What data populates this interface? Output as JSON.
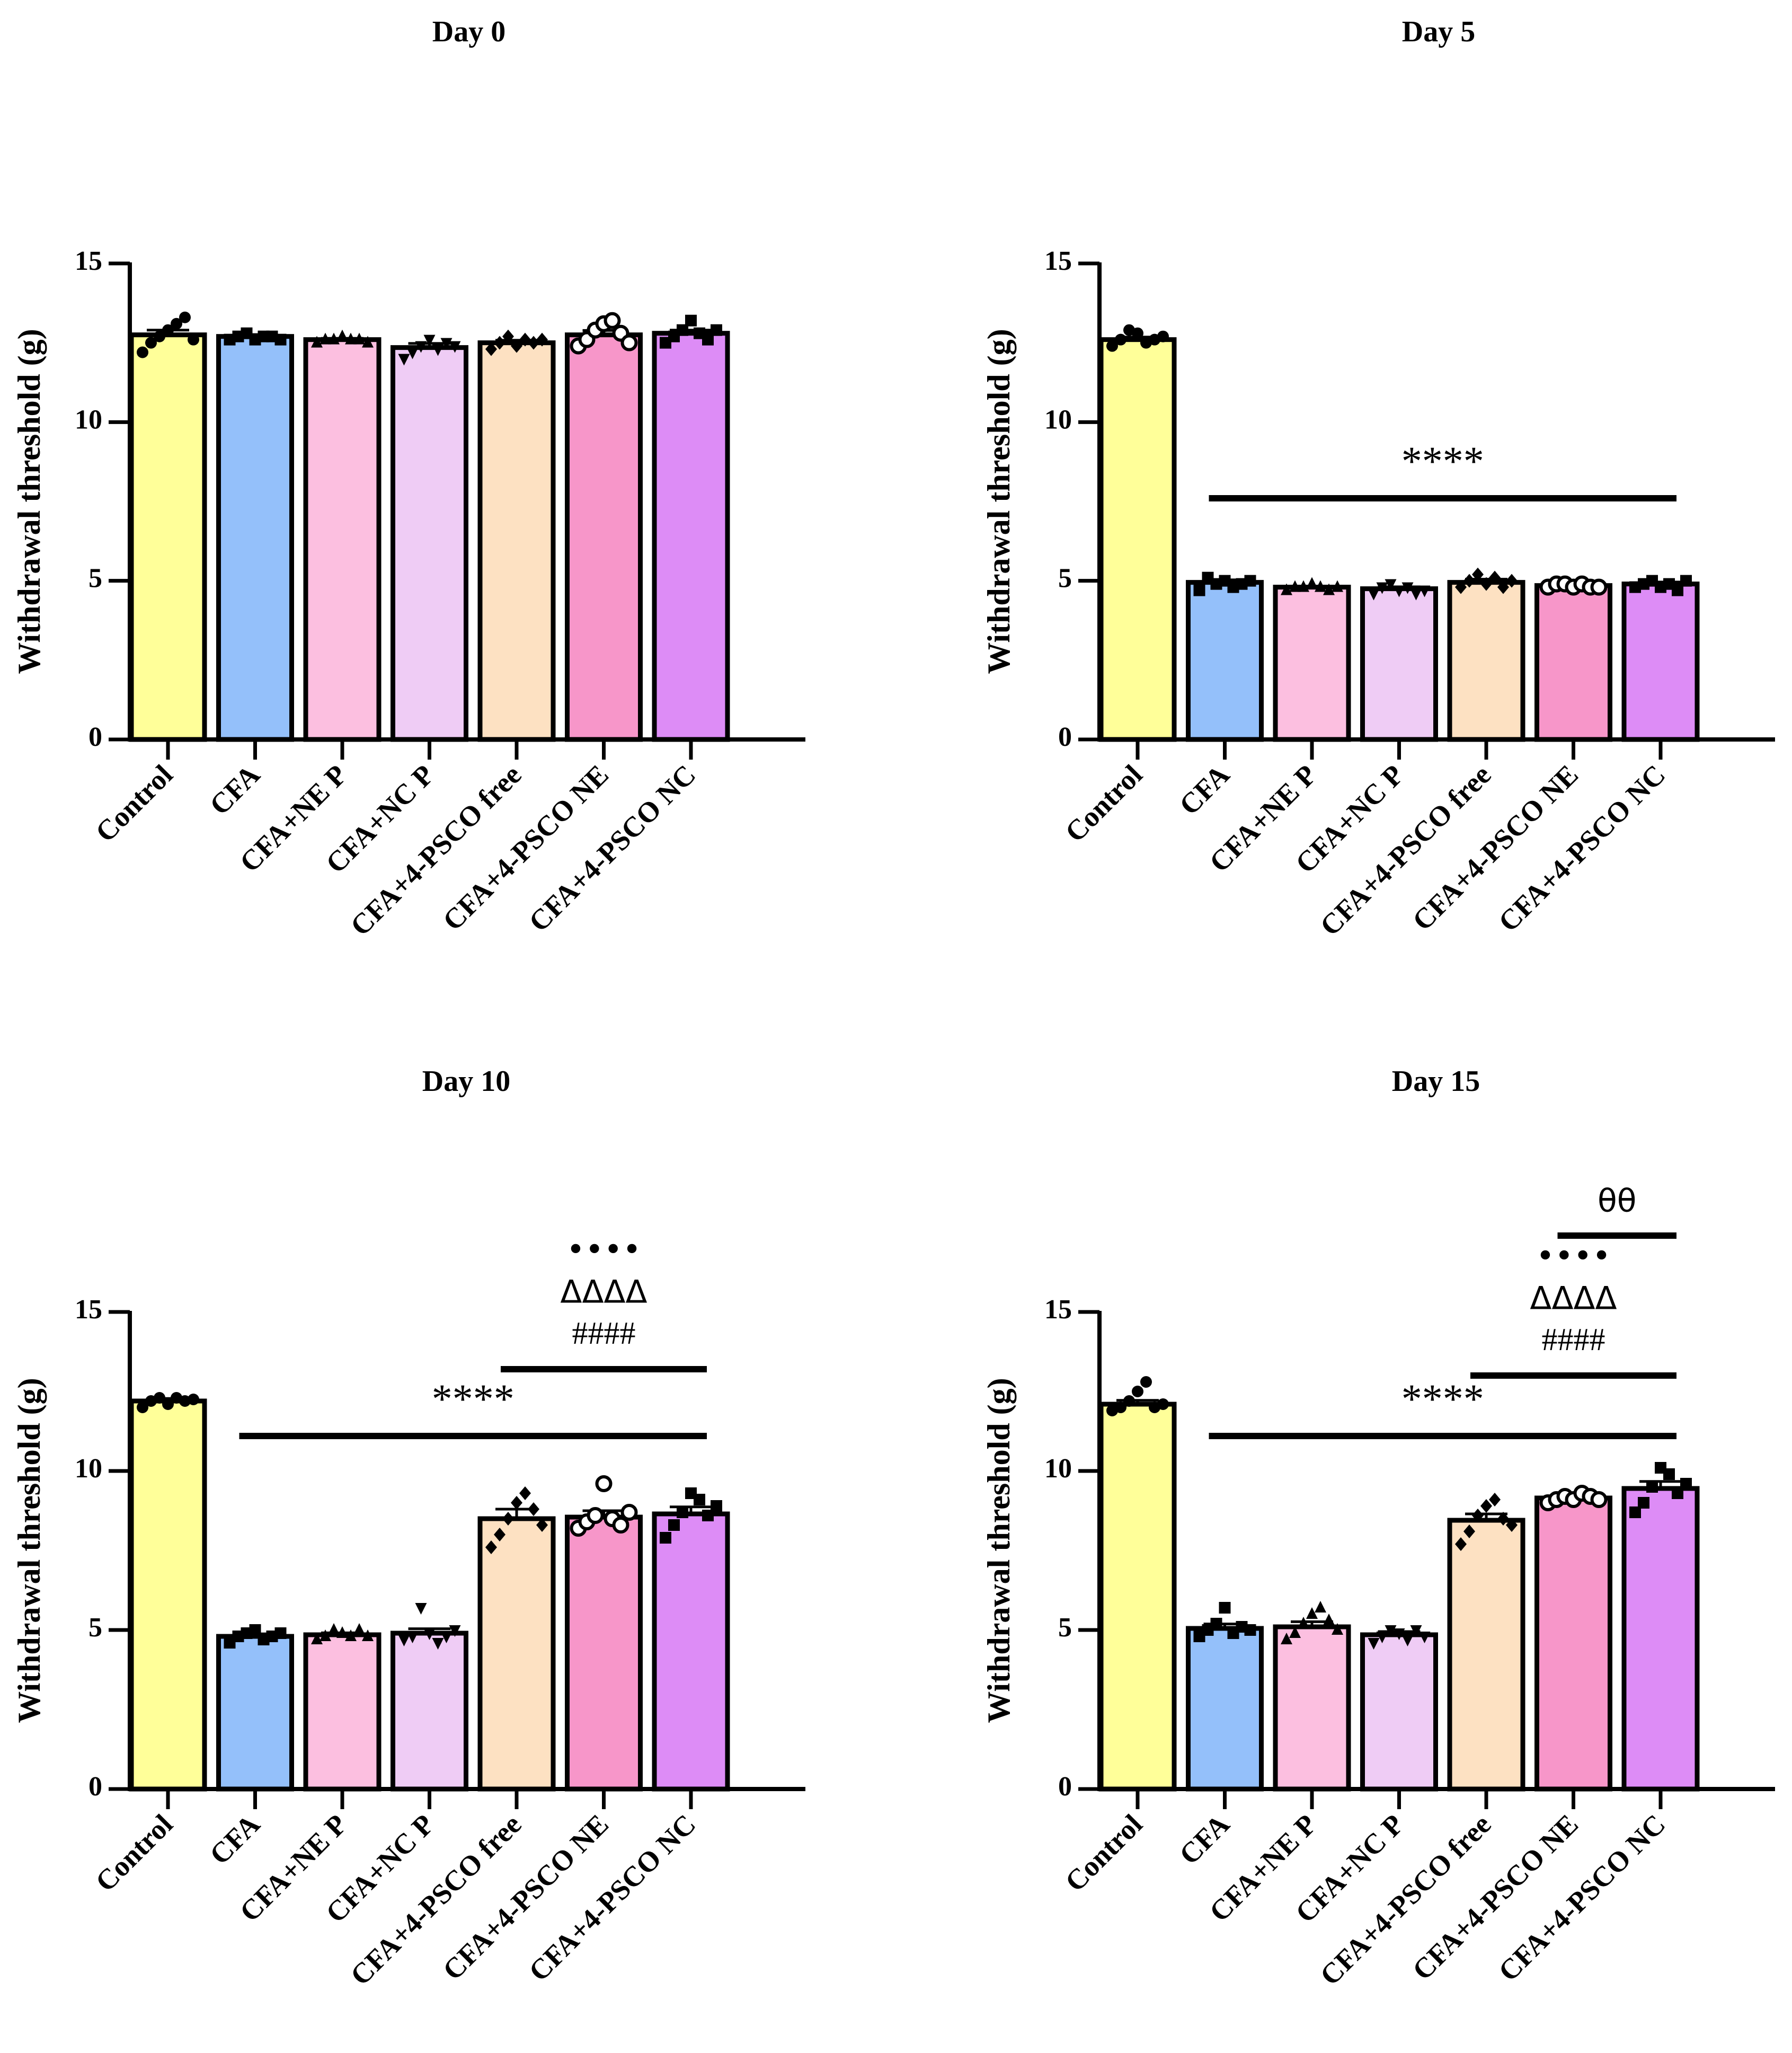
{
  "chart_data": [
    {
      "type": "bar",
      "title": "Day 0",
      "ylabel": "Withdrawal threshold (g)",
      "ylim": [
        0,
        15
      ],
      "yticks": [
        "0",
        "5",
        "10",
        "15"
      ],
      "categories": [
        "Control",
        "CFA",
        "CFA+NE P",
        "CFA+NC P",
        "CFA+4-PSCO free",
        "CFA+4-PSCO NE",
        "CFA+4-PSCO NC"
      ],
      "values": [
        12.75,
        12.7,
        12.6,
        12.35,
        12.5,
        12.75,
        12.8
      ],
      "errors": [
        0.15,
        0.06,
        0.04,
        0.13,
        0.08,
        0.14,
        0.1
      ],
      "points": [
        [
          12.2,
          12.5,
          12.7,
          12.9,
          13.1,
          13.3,
          12.6
        ],
        [
          12.6,
          12.7,
          12.8,
          12.6,
          12.7,
          12.7,
          12.6
        ],
        [
          12.5,
          12.6,
          12.6,
          12.7,
          12.6,
          12.6,
          12.5
        ],
        [
          12.0,
          12.2,
          12.4,
          12.6,
          12.3,
          12.5,
          12.4
        ],
        [
          12.3,
          12.5,
          12.7,
          12.4,
          12.6,
          12.5,
          12.6
        ],
        [
          12.4,
          12.6,
          12.9,
          13.1,
          13.2,
          12.8,
          12.5
        ],
        [
          12.5,
          12.7,
          12.9,
          13.2,
          12.8,
          12.6,
          12.9
        ]
      ],
      "colors": [
        "#ffff99",
        "#94c0fa",
        "#fcbfe0",
        "#efccf5",
        "#fde1c2",
        "#f796c9",
        "#dd8cf6"
      ],
      "markers": [
        "circle",
        "square",
        "triangle",
        "triangle-down",
        "diamond",
        "open-circle",
        "square"
      ],
      "annotations": []
    },
    {
      "type": "bar",
      "title": "Day 5",
      "ylabel": "Withdrawal threshold (g)",
      "ylim": [
        0,
        15
      ],
      "yticks": [
        "0",
        "5",
        "10",
        "15"
      ],
      "categories": [
        "Control",
        "CFA",
        "CFA+NE P",
        "CFA+NC P",
        "CFA+4-PSCO free",
        "CFA+4-PSCO NE",
        "CFA+4-PSCO NC"
      ],
      "values": [
        12.6,
        4.95,
        4.8,
        4.75,
        4.95,
        4.85,
        4.9
      ],
      "errors": [
        0.08,
        0.08,
        0.03,
        0.06,
        0.1,
        0.04,
        0.06
      ],
      "points": [
        [
          12.4,
          12.6,
          12.9,
          12.8,
          12.5,
          12.6,
          12.7
        ],
        [
          4.7,
          5.1,
          4.9,
          5.0,
          4.8,
          4.9,
          5.0
        ],
        [
          4.7,
          4.8,
          4.8,
          4.9,
          4.8,
          4.7,
          4.8
        ],
        [
          4.6,
          4.8,
          4.9,
          4.7,
          4.8,
          4.6,
          4.7
        ],
        [
          4.8,
          5.0,
          5.2,
          4.9,
          5.1,
          4.8,
          5.0
        ],
        [
          4.8,
          4.9,
          4.9,
          4.8,
          4.9,
          4.8,
          4.8
        ],
        [
          4.8,
          4.9,
          5.0,
          4.8,
          4.9,
          4.7,
          5.0
        ]
      ],
      "colors": [
        "#ffff99",
        "#94c0fa",
        "#fcbfe0",
        "#efccf5",
        "#fde1c2",
        "#f796c9",
        "#dd8cf6"
      ],
      "markers": [
        "circle",
        "square",
        "triangle",
        "triangle-down",
        "diamond",
        "open-circle",
        "square"
      ],
      "annotations": [
        {
          "text": "****",
          "from": 1,
          "to": 6,
          "y": 7.6
        }
      ]
    },
    {
      "type": "bar",
      "title": "Day 10",
      "ylabel": "Withdrawal threshold (g)",
      "ylim": [
        0,
        15
      ],
      "yticks": [
        "0",
        "5",
        "10",
        "15"
      ],
      "categories": [
        "Control",
        "CFA",
        "CFA+NE P",
        "CFA+NC P",
        "CFA+4-PSCO free",
        "CFA+4-PSCO NE",
        "CFA+4-PSCO NC"
      ],
      "values": [
        12.2,
        4.8,
        4.85,
        4.9,
        8.5,
        8.55,
        8.65
      ],
      "errors": [
        0.08,
        0.08,
        0.06,
        0.14,
        0.3,
        0.2,
        0.22
      ],
      "points": [
        [
          12.0,
          12.2,
          12.3,
          12.1,
          12.3,
          12.2,
          12.25
        ],
        [
          4.6,
          4.8,
          4.9,
          5.0,
          4.7,
          4.8,
          4.9
        ],
        [
          4.7,
          4.8,
          5.0,
          4.9,
          4.8,
          5.0,
          4.8
        ],
        [
          4.7,
          4.8,
          5.7,
          4.9,
          4.6,
          4.8,
          5.0
        ],
        [
          7.6,
          8.0,
          8.5,
          9.0,
          9.3,
          8.8,
          8.3
        ],
        [
          8.2,
          8.4,
          8.6,
          9.6,
          8.5,
          8.3,
          8.7
        ],
        [
          7.9,
          8.3,
          8.7,
          9.3,
          9.1,
          8.6,
          8.9
        ]
      ],
      "colors": [
        "#ffff99",
        "#94c0fa",
        "#fcbfe0",
        "#efccf5",
        "#fde1c2",
        "#f796c9",
        "#dd8cf6"
      ],
      "markers": [
        "circle",
        "square",
        "triangle",
        "triangle-down",
        "diamond",
        "open-circle",
        "square"
      ],
      "annotations": [
        {
          "text": "****",
          "from": 1,
          "to": 6,
          "y": 11.1
        },
        {
          "text": "####",
          "from": 4,
          "to": 6,
          "y": 13.2
        },
        {
          "text": "ΔΔΔΔ",
          "from": 4,
          "to": 6,
          "y": 13.2,
          "line": false,
          "stack": 1
        },
        {
          "text": "••••",
          "from": 4,
          "to": 6,
          "y": 13.2,
          "line": false,
          "stack": 2
        }
      ]
    },
    {
      "type": "bar",
      "title": "Day 15",
      "ylabel": "Withdrawal threshold (g)",
      "ylim": [
        0,
        15
      ],
      "yticks": [
        "0",
        "5",
        "10",
        "15"
      ],
      "categories": [
        "Control",
        "CFA",
        "CFA+NE P",
        "CFA+NC P",
        "CFA+4-PSCO free",
        "CFA+4-PSCO NE",
        "CFA+4-PSCO NC"
      ],
      "values": [
        12.1,
        5.05,
        5.1,
        4.85,
        8.45,
        9.15,
        9.45
      ],
      "errors": [
        0.12,
        0.14,
        0.16,
        0.1,
        0.2,
        0.06,
        0.22
      ],
      "points": [
        [
          11.9,
          12.0,
          12.2,
          12.5,
          12.8,
          12.0,
          12.1
        ],
        [
          4.8,
          5.0,
          5.2,
          5.7,
          4.9,
          5.1,
          5.0
        ],
        [
          4.7,
          4.9,
          5.2,
          5.5,
          5.7,
          5.3,
          5.0
        ],
        [
          4.6,
          4.8,
          5.0,
          4.9,
          4.7,
          5.0,
          4.8
        ],
        [
          7.7,
          8.1,
          8.6,
          8.9,
          9.1,
          8.5,
          8.3
        ],
        [
          9.0,
          9.1,
          9.2,
          9.1,
          9.3,
          9.2,
          9.1
        ],
        [
          8.7,
          9.0,
          9.5,
          10.1,
          9.9,
          9.3,
          9.6
        ]
      ],
      "colors": [
        "#ffff99",
        "#94c0fa",
        "#fcbfe0",
        "#efccf5",
        "#fde1c2",
        "#f796c9",
        "#dd8cf6"
      ],
      "markers": [
        "circle",
        "square",
        "triangle",
        "triangle-down",
        "diamond",
        "open-circle",
        "square"
      ],
      "annotations": [
        {
          "text": "****",
          "from": 1,
          "to": 6,
          "y": 11.1
        },
        {
          "text": "####",
          "from": 4,
          "to": 6,
          "y": 13.0
        },
        {
          "text": "ΔΔΔΔ",
          "from": 4,
          "to": 6,
          "y": 13.0,
          "line": false,
          "stack": 1
        },
        {
          "text": "••••",
          "from": 4,
          "to": 6,
          "y": 13.0,
          "line": false,
          "stack": 2
        },
        {
          "text": "θθ",
          "from": 5,
          "to": 6,
          "y": 17.4
        }
      ]
    }
  ]
}
